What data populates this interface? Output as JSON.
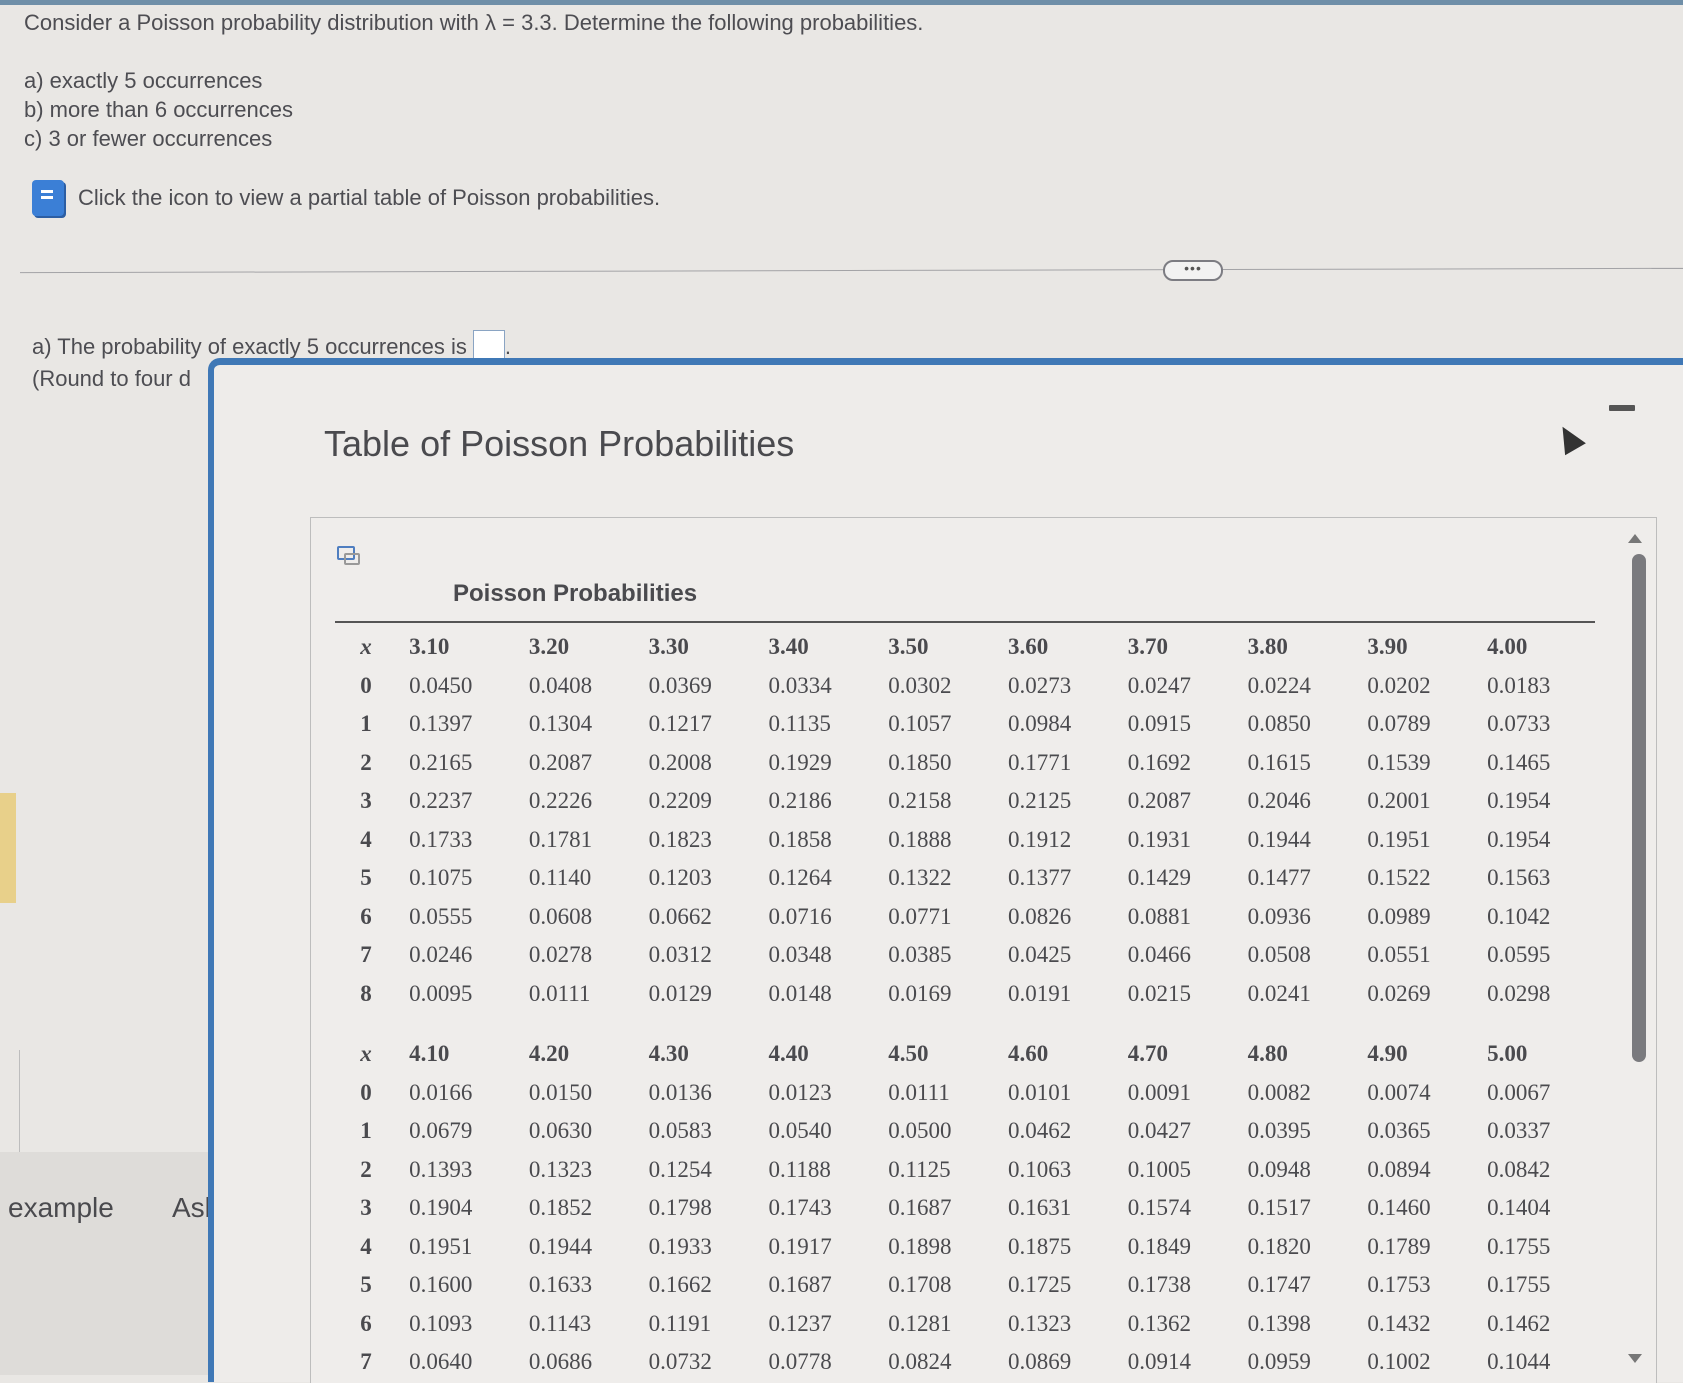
{
  "question": {
    "prompt": "Consider a Poisson probability distribution with λ = 3.3. Determine the following probabilities.",
    "parts": [
      "a) exactly 5 occurrences",
      "b) more than 6 occurrences",
      "c) 3 or fewer occurrences"
    ],
    "hint": "Click the icon to view a partial table of Poisson probabilities.",
    "more_button": "•••"
  },
  "answer": {
    "part_a_prefix": "a) The probability of exactly 5 occurrences is",
    "part_a_suffix": ".",
    "part_a_value": "",
    "round_note": "(Round to four d"
  },
  "footer": {
    "example_label": "example",
    "ask_label": "Ask"
  },
  "modal": {
    "title": "Table of Poisson Probabilities",
    "table_heading": "Poisson Probabilities",
    "x_label": "x",
    "block1": {
      "lambdas": [
        "3.10",
        "3.20",
        "3.30",
        "3.40",
        "3.50",
        "3.60",
        "3.70",
        "3.80",
        "3.90",
        "4.00"
      ],
      "rows": [
        {
          "x": "0",
          "v": [
            "0.0450",
            "0.0408",
            "0.0369",
            "0.0334",
            "0.0302",
            "0.0273",
            "0.0247",
            "0.0224",
            "0.0202",
            "0.0183"
          ]
        },
        {
          "x": "1",
          "v": [
            "0.1397",
            "0.1304",
            "0.1217",
            "0.1135",
            "0.1057",
            "0.0984",
            "0.0915",
            "0.0850",
            "0.0789",
            "0.0733"
          ]
        },
        {
          "x": "2",
          "v": [
            "0.2165",
            "0.2087",
            "0.2008",
            "0.1929",
            "0.1850",
            "0.1771",
            "0.1692",
            "0.1615",
            "0.1539",
            "0.1465"
          ]
        },
        {
          "x": "3",
          "v": [
            "0.2237",
            "0.2226",
            "0.2209",
            "0.2186",
            "0.2158",
            "0.2125",
            "0.2087",
            "0.2046",
            "0.2001",
            "0.1954"
          ]
        },
        {
          "x": "4",
          "v": [
            "0.1733",
            "0.1781",
            "0.1823",
            "0.1858",
            "0.1888",
            "0.1912",
            "0.1931",
            "0.1944",
            "0.1951",
            "0.1954"
          ]
        },
        {
          "x": "5",
          "v": [
            "0.1075",
            "0.1140",
            "0.1203",
            "0.1264",
            "0.1322",
            "0.1377",
            "0.1429",
            "0.1477",
            "0.1522",
            "0.1563"
          ]
        },
        {
          "x": "6",
          "v": [
            "0.0555",
            "0.0608",
            "0.0662",
            "0.0716",
            "0.0771",
            "0.0826",
            "0.0881",
            "0.0936",
            "0.0989",
            "0.1042"
          ]
        },
        {
          "x": "7",
          "v": [
            "0.0246",
            "0.0278",
            "0.0312",
            "0.0348",
            "0.0385",
            "0.0425",
            "0.0466",
            "0.0508",
            "0.0551",
            "0.0595"
          ]
        },
        {
          "x": "8",
          "v": [
            "0.0095",
            "0.0111",
            "0.0129",
            "0.0148",
            "0.0169",
            "0.0191",
            "0.0215",
            "0.0241",
            "0.0269",
            "0.0298"
          ]
        }
      ]
    },
    "block2": {
      "lambdas": [
        "4.10",
        "4.20",
        "4.30",
        "4.40",
        "4.50",
        "4.60",
        "4.70",
        "4.80",
        "4.90",
        "5.00"
      ],
      "rows": [
        {
          "x": "0",
          "v": [
            "0.0166",
            "0.0150",
            "0.0136",
            "0.0123",
            "0.0111",
            "0.0101",
            "0.0091",
            "0.0082",
            "0.0074",
            "0.0067"
          ]
        },
        {
          "x": "1",
          "v": [
            "0.0679",
            "0.0630",
            "0.0583",
            "0.0540",
            "0.0500",
            "0.0462",
            "0.0427",
            "0.0395",
            "0.0365",
            "0.0337"
          ]
        },
        {
          "x": "2",
          "v": [
            "0.1393",
            "0.1323",
            "0.1254",
            "0.1188",
            "0.1125",
            "0.1063",
            "0.1005",
            "0.0948",
            "0.0894",
            "0.0842"
          ]
        },
        {
          "x": "3",
          "v": [
            "0.1904",
            "0.1852",
            "0.1798",
            "0.1743",
            "0.1687",
            "0.1631",
            "0.1574",
            "0.1517",
            "0.1460",
            "0.1404"
          ]
        },
        {
          "x": "4",
          "v": [
            "0.1951",
            "0.1944",
            "0.1933",
            "0.1917",
            "0.1898",
            "0.1875",
            "0.1849",
            "0.1820",
            "0.1789",
            "0.1755"
          ]
        },
        {
          "x": "5",
          "v": [
            "0.1600",
            "0.1633",
            "0.1662",
            "0.1687",
            "0.1708",
            "0.1725",
            "0.1738",
            "0.1747",
            "0.1753",
            "0.1755"
          ]
        },
        {
          "x": "6",
          "v": [
            "0.1093",
            "0.1143",
            "0.1191",
            "0.1237",
            "0.1281",
            "0.1323",
            "0.1362",
            "0.1398",
            "0.1432",
            "0.1462"
          ]
        },
        {
          "x": "7",
          "v": [
            "0.0640",
            "0.0686",
            "0.0732",
            "0.0778",
            "0.0824",
            "0.0869",
            "0.0914",
            "0.0959",
            "0.1002",
            "0.1044"
          ]
        }
      ]
    }
  },
  "colors": {
    "accent": "#3f78b6",
    "icon_blue": "#3b7fd6",
    "background": "#e9e7e4"
  }
}
